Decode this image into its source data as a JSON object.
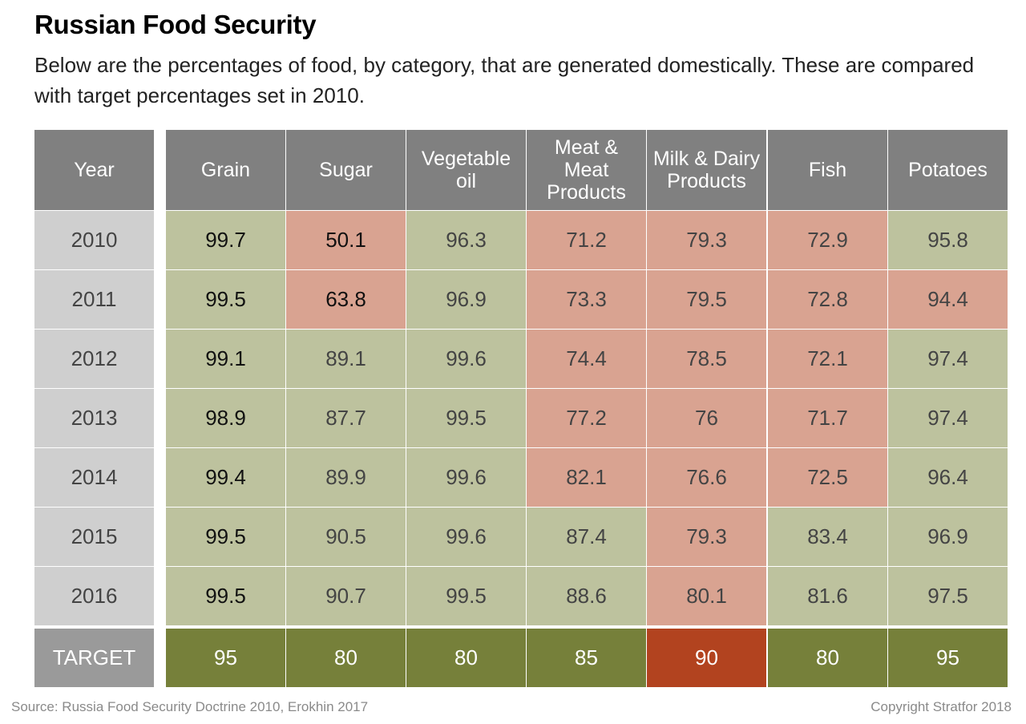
{
  "title": "Russian Food Security",
  "subtitle": "Below are the percentages of food, by category, that are generated domestically. These are compared with target percentages set in 2010.",
  "source": "Source: Russia Food Security Doctrine 2010, Erokhin 2017",
  "copyright": "Copyright Stratfor 2018",
  "colors": {
    "header": "#808080",
    "meets_target": "#bdc29e",
    "below_target": "#d9a391",
    "target_met": "#76803a",
    "target_missed": "#b2431f",
    "year_column": "#cfcfcf"
  },
  "chart_data": {
    "type": "table",
    "year_header": "Year",
    "target_label": "TARGET",
    "years": [
      "2010",
      "2011",
      "2012",
      "2013",
      "2014",
      "2015",
      "2016"
    ],
    "columns": [
      {
        "name": "Grain",
        "values": [
          "99.7",
          "99.5",
          "99.1",
          "98.9",
          "99.4",
          "99.5",
          "99.5"
        ],
        "target": "95",
        "target_met": true
      },
      {
        "name": "Sugar",
        "values": [
          "50.1",
          "63.8",
          "89.1",
          "87.7",
          "89.9",
          "90.5",
          "90.7"
        ],
        "target": "80",
        "target_met": true
      },
      {
        "name": "Vegetable oil",
        "values": [
          "96.3",
          "96.9",
          "99.6",
          "99.5",
          "99.6",
          "99.6",
          "99.5"
        ],
        "target": "80",
        "target_met": true
      },
      {
        "name": "Meat & Meat Products",
        "values": [
          "71.2",
          "73.3",
          "74.4",
          "77.2",
          "82.1",
          "87.4",
          "88.6"
        ],
        "target": "85",
        "target_met": true
      },
      {
        "name": "Milk & Dairy Products",
        "values": [
          "79.3",
          "79.5",
          "78.5",
          "76",
          "76.6",
          "79.3",
          "80.1"
        ],
        "target": "90",
        "target_met": false
      },
      {
        "name": "Fish",
        "values": [
          "72.9",
          "72.8",
          "72.1",
          "71.7",
          "72.5",
          "83.4",
          "81.6"
        ],
        "target": "80",
        "target_met": true
      },
      {
        "name": "Potatoes",
        "values": [
          "95.8",
          "94.4",
          "97.4",
          "97.4",
          "96.4",
          "96.9",
          "97.5"
        ],
        "target": "95",
        "target_met": true
      }
    ]
  }
}
